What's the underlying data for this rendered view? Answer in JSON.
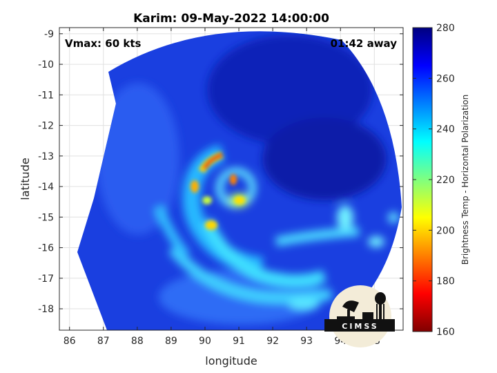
{
  "chart_data": {
    "type": "heatmap",
    "title": "Karim: 09-May-2022 14:00:00",
    "xlabel": "longitude",
    "ylabel": "latitude",
    "xlim": [
      85.7,
      95.85
    ],
    "ylim": [
      -18.7,
      -8.8
    ],
    "xticks": [
      86,
      87,
      88,
      89,
      90,
      91,
      92,
      93,
      94,
      95
    ],
    "yticks": [
      -9,
      -10,
      -11,
      -12,
      -13,
      -14,
      -15,
      -16,
      -17,
      -18
    ],
    "grid": true,
    "annotations": {
      "vmax": "Vmax: 60 kts",
      "offset": "01:42 away"
    },
    "colorbar": {
      "label": "Brightness Temp - Horizontal Polarization",
      "min": 160,
      "max": 280,
      "ticks": [
        160,
        180,
        200,
        220,
        240,
        260,
        280
      ],
      "colormap": "jet"
    },
    "storm_center": {
      "lon": 90.9,
      "lat": -13.8
    },
    "logo": "CIMSS"
  }
}
